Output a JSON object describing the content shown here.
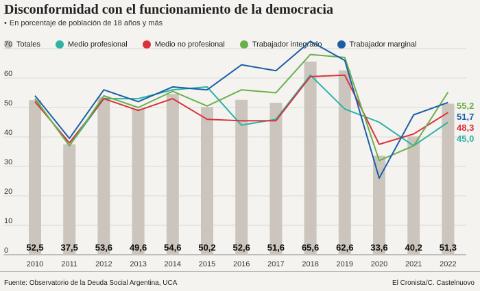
{
  "title": "Disconformidad con el funcionamiento de la democracia",
  "subtitle": "En porcentaje de población de 18 años y más",
  "subtitle_bullet": "•",
  "source": "Fuente: Observatorio de la Deuda Social Argentina, UCA",
  "credit": "El Cronista/C. Castelnuovo",
  "colors": {
    "bars": "#cbc5bd",
    "medio_profesional": "#2bb3a5",
    "medio_no_profesional": "#d9323a",
    "trabajador_integrado": "#6ab04c",
    "trabajador_marginal": "#1a5ea8",
    "grid": "#cfcfcf"
  },
  "legend": [
    {
      "label": "Totales",
      "color": "#cbc5bd"
    },
    {
      "label": "Medio profesional",
      "color": "#2bb3a5"
    },
    {
      "label": "Medio no profesional",
      "color": "#d9323a"
    },
    {
      "label": "Trabajador integrado",
      "color": "#6ab04c"
    },
    {
      "label": "Trabajador marginal",
      "color": "#1a5ea8"
    }
  ],
  "chart_data": {
    "type": "bar",
    "categories": [
      "2010",
      "2011",
      "2012",
      "2013",
      "2014",
      "2015",
      "2016",
      "2017",
      "2018",
      "2019",
      "2020",
      "2021",
      "2022"
    ],
    "bar_series": {
      "name": "Totales",
      "values": [
        52.5,
        37.5,
        53.6,
        49.6,
        54.6,
        50.2,
        52.6,
        51.6,
        65.6,
        62.6,
        33.6,
        40.2,
        51.3
      ]
    },
    "bar_labels": [
      "52,5",
      "37,5",
      "53,6",
      "49,6",
      "54,6",
      "50,2",
      "52,6",
      "51,6",
      "65,6",
      "62,6",
      "33,6",
      "40,2",
      "51,3"
    ],
    "line_series": [
      {
        "name": "Medio profesional",
        "values": [
          53,
          37,
          53,
          53,
          56,
          57,
          44,
          46,
          61,
          49.5,
          45,
          37,
          45.0
        ]
      },
      {
        "name": "Medio no profesional",
        "values": [
          52,
          38,
          53,
          49,
          53,
          46,
          45.5,
          45.5,
          60.5,
          61,
          37.5,
          41,
          48.3
        ]
      },
      {
        "name": "Trabajador integrado",
        "values": [
          53,
          37,
          54,
          50,
          55.5,
          50.5,
          56,
          55,
          68,
          67,
          32,
          37,
          55.2
        ]
      },
      {
        "name": "Trabajador marginal",
        "values": [
          54,
          39.5,
          56,
          52,
          57,
          56,
          64.5,
          62.5,
          72.5,
          66,
          26,
          47.5,
          51.7
        ]
      }
    ],
    "end_labels": [
      "55,2",
      "51,7",
      "48,3",
      "45,0"
    ],
    "y_ticks": [
      "0",
      "10",
      "20",
      "30",
      "40",
      "50",
      "60",
      "70"
    ],
    "ylim": [
      0,
      75
    ],
    "grid": true
  }
}
